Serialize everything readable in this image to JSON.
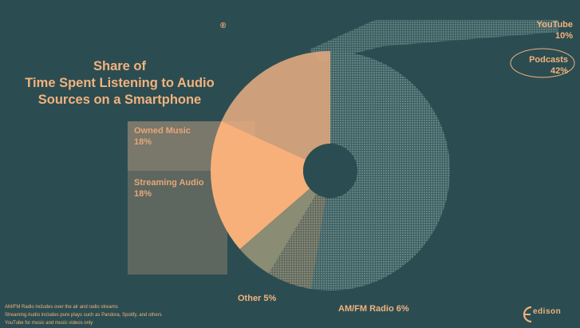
{
  "chart_data": {
    "type": "pie",
    "title": [
      "Share of",
      "Time Spent Listening to Audio",
      "Sources on a Smartphone"
    ],
    "registered_mark": "®",
    "slices": [
      {
        "label": "Owned Music",
        "value_label": "18%",
        "value": 18,
        "color": "#dfa980"
      },
      {
        "label": "Streaming Audio",
        "value_label": "18%",
        "value": 18,
        "color": "#f7b079"
      },
      {
        "label": "Other 5%",
        "value": 5,
        "color": "#8a8c74"
      },
      {
        "label": "AM/FM Radio 6%",
        "value": 6,
        "color": "#5f6e63"
      },
      {
        "label": "Podcasts",
        "value_label": "42%",
        "value": 42,
        "color": "#3f6163"
      },
      {
        "label": "YouTube",
        "value_label": "10%",
        "value": 10,
        "color": "#6f8e8e"
      }
    ],
    "notes": [
      "AM/FM Radio includes over the air and radio streams",
      "Streaming Audio includes pure plays such as Pandora, Spotify, and others",
      "YouTube for music and music videos only"
    ]
  },
  "brand": {
    "logo_text": "edison"
  }
}
